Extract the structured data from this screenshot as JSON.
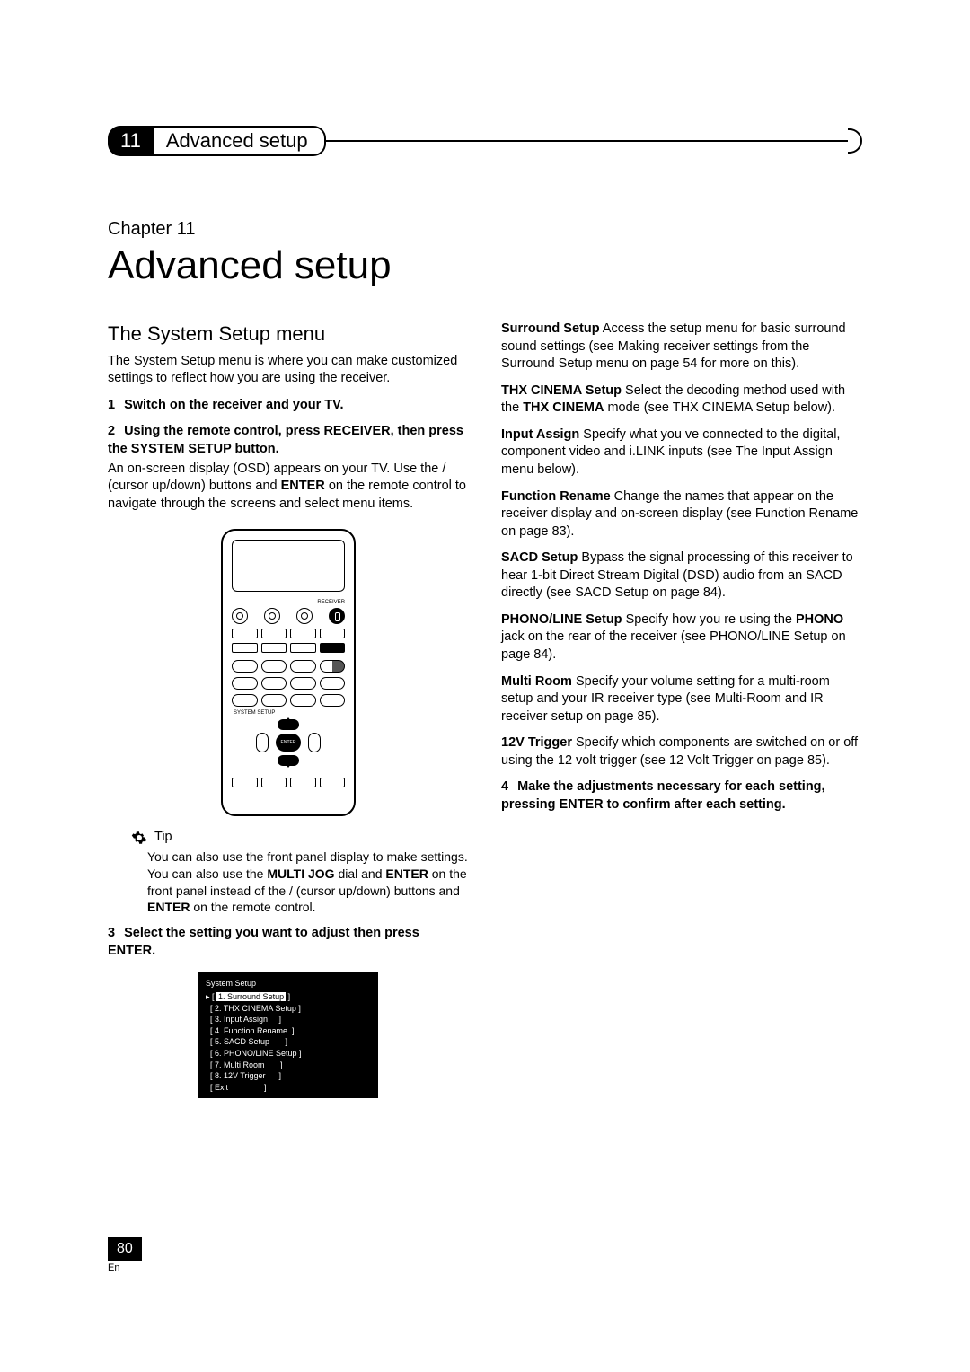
{
  "header": {
    "number": "11",
    "title": "Advanced setup"
  },
  "chapter": {
    "label": "Chapter 11",
    "title": "Advanced setup"
  },
  "left": {
    "section_title": "The System Setup menu",
    "intro": "The System Setup menu is where you can make customized settings to reflect how you are using the receiver.",
    "step1_num": "1",
    "step1": "Switch on the receiver and your TV.",
    "step2_num": "2",
    "step2": "Using the remote control, press RECEIVER, then press the SYSTEM SETUP button.",
    "step2_body_a": "An on-screen display (OSD) appears on your TV. Use the ",
    "step2_body_b": " (cursor up/down) buttons and ",
    "step2_body_enter": "ENTER",
    "step2_body_c": " on the remote control to navigate through the screens and select menu items.",
    "remote_receiver_label": "RECEIVER",
    "remote_system_label": "SYSTEM SETUP",
    "remote_enter": "ENTER",
    "tip_label": "Tip",
    "tip_a": "You can also use the front panel display to make settings. You can also use the ",
    "tip_multi": "MULTI JOG",
    "tip_b": " dial and ",
    "tip_enter": "ENTER",
    "tip_c": " on the front panel instead of the ",
    "tip_d": " (cursor up/down) buttons and ",
    "tip_enter2": "ENTER",
    "tip_e": " on the remote control.",
    "step3_num": "3",
    "step3": "Select the setting you want to adjust then press ENTER.",
    "osd": {
      "title": "System Setup",
      "items": [
        "1. Surround Setup",
        "2. THX CINEMA Setup",
        "3. Input Assign",
        "4. Function Rename",
        "5. SACD Setup",
        "6. PHONO/LINE Setup",
        "7. Multi Room",
        "8. 12V Trigger",
        "Exit"
      ],
      "selected_index": 0
    }
  },
  "right": {
    "items": [
      {
        "name": "Surround Setup",
        "text": "  Access the setup menu for basic surround sound settings (see Making receiver settings from the Surround Setup menu on page 54 for more on this)."
      },
      {
        "name": "THX CINEMA Setup",
        "text": "  Select the decoding method used with the ",
        "bold2": "THX CINEMA",
        "text2": " mode (see THX CINEMA Setup below)."
      },
      {
        "name": "Input Assign",
        "text": "  Specify what you ve connected to the digital, component video and i.LINK inputs (see The Input Assign menu below)."
      },
      {
        "name": "Function Rename",
        "text": "  Change the names that appear on the receiver display and on-screen display (see Function Rename on page 83)."
      },
      {
        "name": "SACD Setup",
        "text": "  Bypass the signal processing of this receiver to hear 1-bit Direct Stream Digital (DSD) audio from an SACD directly (see SACD Setup on page 84)."
      },
      {
        "name": "PHONO/LINE Setup",
        "text": "  Specify how you re using the ",
        "bold2": "PHONO",
        "text2": " jack on the rear of the receiver (see PHONO/LINE Setup on page 84)."
      },
      {
        "name": "Multi Room",
        "text": "  Specify your volume setting for a multi-room setup and your IR receiver type (see Multi-Room and IR receiver setup on page 85)."
      },
      {
        "name": "12V Trigger",
        "text": "  Specify which components are switched on or off using the 12 volt trigger (see 12 Volt Trigger on page 85)."
      }
    ],
    "step4_num": "4",
    "step4": "Make the adjustments necessary for each setting, pressing ENTER to confirm after each setting."
  },
  "footer": {
    "page": "80",
    "lang": "En"
  },
  "colors": {
    "bg": "#ffffff",
    "fg": "#000000"
  }
}
